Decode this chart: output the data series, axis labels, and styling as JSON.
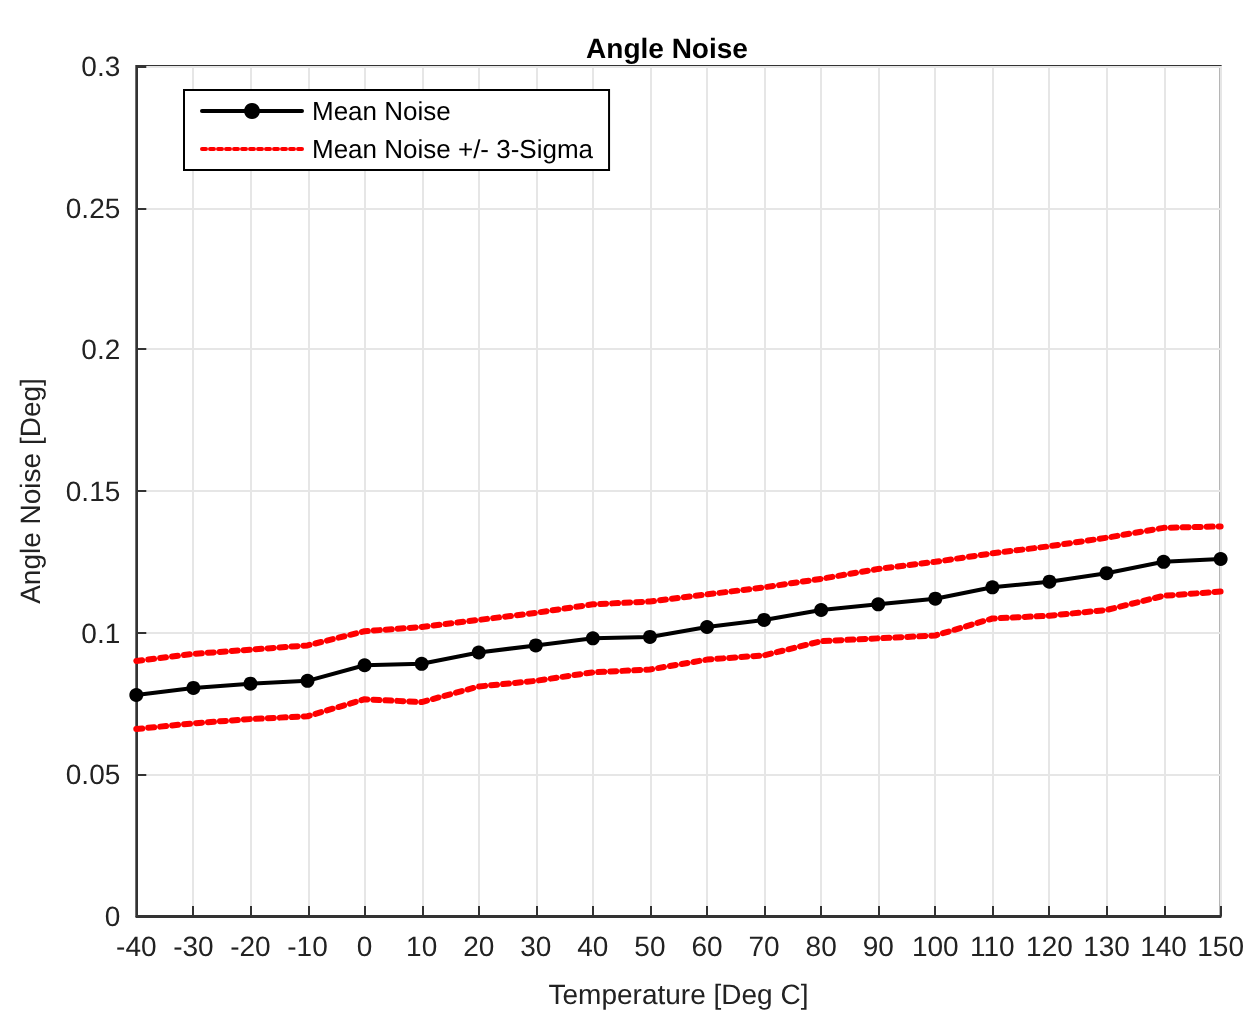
{
  "chart_data": {
    "type": "line",
    "title": "Angle Noise",
    "xlabel": "Temperature [Deg C]",
    "ylabel": "Angle Noise [Deg]",
    "x": [
      -40,
      -30,
      -20,
      -10,
      0,
      10,
      20,
      30,
      40,
      50,
      60,
      70,
      80,
      90,
      100,
      110,
      120,
      130,
      140,
      150
    ],
    "series": [
      {
        "name": "Mean Noise",
        "color": "#000000",
        "marker": "circle",
        "line_style": "solid",
        "values": [
          0.078,
          0.0805,
          0.082,
          0.083,
          0.0885,
          0.089,
          0.093,
          0.0955,
          0.098,
          0.0985,
          0.102,
          0.1045,
          0.108,
          0.11,
          0.112,
          0.116,
          0.118,
          0.121,
          0.125,
          0.126
        ]
      },
      {
        "name": "Mean Noise +/- 3-Sigma",
        "color": "#ff0000",
        "marker": "none",
        "line_style": "dotted",
        "values": [
          0.09,
          0.0925,
          0.094,
          0.0955,
          0.1005,
          0.102,
          0.1045,
          0.107,
          0.11,
          0.111,
          0.1135,
          0.116,
          0.119,
          0.1225,
          0.125,
          0.128,
          0.1305,
          0.1335,
          0.137,
          0.1375
        ]
      },
      {
        "color": "#ff0000",
        "marker": "none",
        "line_style": "dotted",
        "values": [
          0.066,
          0.068,
          0.0695,
          0.0705,
          0.0765,
          0.0755,
          0.081,
          0.083,
          0.086,
          0.087,
          0.0905,
          0.092,
          0.097,
          0.098,
          0.099,
          0.105,
          0.106,
          0.108,
          0.113,
          0.1145
        ]
      }
    ],
    "xlim": [
      -40,
      150
    ],
    "xticks": [
      -40,
      -30,
      -20,
      -10,
      0,
      10,
      20,
      30,
      40,
      50,
      60,
      70,
      80,
      90,
      100,
      110,
      120,
      130,
      140,
      150
    ],
    "ylim": [
      0,
      0.3
    ],
    "yticks": [
      0,
      0.05,
      0.1,
      0.15,
      0.2,
      0.25,
      0.3
    ],
    "grid": true,
    "legend": "top left"
  }
}
